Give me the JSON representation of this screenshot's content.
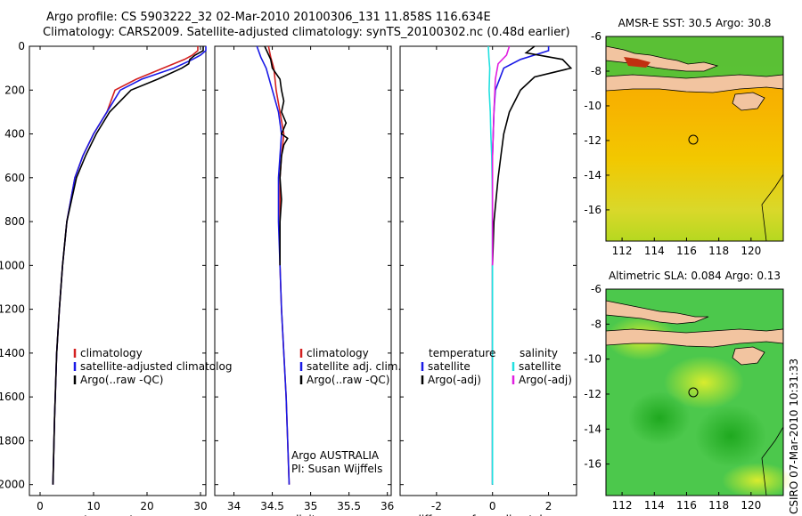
{
  "title": {
    "line1": "Argo profile: CS 5903222_32 02-Mar-2010 20100306_131 11.858S 116.634E",
    "line2": "Climatology: CARS2009. Satellite-adjusted climatology: synTS_20100302.nc (0.48d earlier)"
  },
  "colors": {
    "climatology": "#d42020",
    "satellite": "#1a1ae6",
    "argo": "#000000",
    "sat_salinity": "#22e0e0",
    "argo_salinity": "#e020e0"
  },
  "chart_data": [
    {
      "type": "line",
      "id": "temperature",
      "xlabel": "temperature",
      "ylabel": "",
      "xlim": [
        -2,
        31
      ],
      "ylim": [
        2050,
        0
      ],
      "xticks": [
        0,
        10,
        20,
        30
      ],
      "yticks": [
        0,
        200,
        400,
        600,
        800,
        1000,
        1200,
        1400,
        1600,
        1800,
        2000
      ],
      "series": [
        {
          "name": "climatology",
          "color": "#d42020",
          "x": [
            29.5,
            29.5,
            28.5,
            27,
            23,
            18,
            14,
            12.5,
            10,
            8,
            6.5,
            5,
            4.2,
            3.6,
            3.1,
            2.7,
            2.4
          ],
          "y": [
            0,
            20,
            40,
            60,
            100,
            150,
            200,
            300,
            400,
            500,
            600,
            800,
            1000,
            1200,
            1400,
            1700,
            2000
          ]
        },
        {
          "name": "satellite-adjusted climatology",
          "color": "#1a1ae6",
          "x": [
            31,
            31,
            30,
            28.5,
            25,
            19,
            15,
            12.5,
            10,
            8,
            6.5,
            5,
            4.2,
            3.6,
            3.1,
            2.7,
            2.4
          ],
          "y": [
            0,
            20,
            40,
            60,
            100,
            150,
            200,
            300,
            400,
            500,
            600,
            800,
            1000,
            1200,
            1400,
            1700,
            2000
          ]
        },
        {
          "name": "Argo(..raw -QC)",
          "color": "#000000",
          "x": [
            30.5,
            30.5,
            29,
            28,
            27.8,
            26.5,
            22,
            17,
            13,
            10.5,
            8.5,
            6.8,
            5,
            4.2,
            3.6,
            3.1,
            2.7,
            2.4
          ],
          "y": [
            0,
            20,
            40,
            60,
            80,
            100,
            150,
            200,
            300,
            400,
            500,
            600,
            800,
            1000,
            1200,
            1400,
            1700,
            2000
          ]
        }
      ]
    },
    {
      "type": "line",
      "id": "salinity",
      "xlabel": "salinity",
      "xlim": [
        33.75,
        36.05
      ],
      "ylim": [
        2050,
        0
      ],
      "xticks": [
        34,
        34.5,
        35,
        35.5,
        36
      ],
      "series": [
        {
          "name": "climatology",
          "color": "#d42020",
          "x": [
            34.45,
            34.48,
            34.52,
            34.55,
            34.6,
            34.65,
            34.62,
            34.6,
            34.6,
            34.6,
            34.62,
            34.65,
            34.68,
            34.7,
            34.72
          ],
          "y": [
            0,
            50,
            100,
            200,
            300,
            400,
            500,
            600,
            800,
            1000,
            1200,
            1400,
            1600,
            1800,
            2000
          ]
        },
        {
          "name": "satellite adj. clim.",
          "color": "#1a1ae6",
          "x": [
            34.3,
            34.35,
            34.42,
            34.5,
            34.58,
            34.62,
            34.6,
            34.58,
            34.58,
            34.6,
            34.62,
            34.65,
            34.68,
            34.7,
            34.72
          ],
          "y": [
            0,
            50,
            100,
            200,
            300,
            400,
            500,
            600,
            800,
            1000,
            1200,
            1400,
            1600,
            1800,
            2000
          ]
        },
        {
          "name": "Argo(..raw -QC)",
          "color": "#000000",
          "x": [
            34.4,
            34.48,
            34.5,
            34.6,
            34.62,
            34.65,
            34.62,
            34.68,
            34.62,
            34.7,
            34.65,
            34.62,
            34.6,
            34.62,
            34.6,
            34.6,
            34.6
          ],
          "y": [
            0,
            60,
            100,
            150,
            200,
            250,
            300,
            350,
            400,
            420,
            450,
            500,
            600,
            700,
            800,
            900,
            1000
          ]
        }
      ],
      "annotations": [
        "Argo AUSTRALIA",
        "PI: Susan Wijffels"
      ]
    },
    {
      "type": "line",
      "id": "difference",
      "xlabel": "difference from climatology",
      "xlim": [
        -3.3,
        3
      ],
      "ylim": [
        2050,
        0
      ],
      "xticks": [
        -2,
        0,
        2
      ],
      "series": [
        {
          "name": "temperature satellite",
          "color": "#1a1ae6",
          "x": [
            2,
            2,
            1.5,
            1,
            0.4,
            0.1,
            0.05,
            0,
            0,
            0
          ],
          "y": [
            0,
            20,
            40,
            60,
            100,
            200,
            300,
            500,
            1000,
            2000
          ]
        },
        {
          "name": "temperature Argo(-adj)",
          "color": "#000000",
          "x": [
            1.5,
            1.2,
            2.5,
            2.8,
            1.5,
            1,
            0.6,
            0.4,
            0.3,
            0.2,
            0.05,
            0,
            0
          ],
          "y": [
            0,
            30,
            60,
            100,
            140,
            200,
            300,
            400,
            500,
            600,
            800,
            1000,
            2000
          ]
        },
        {
          "name": "salinity satellite",
          "color": "#22e0e0",
          "x": [
            -0.15,
            -0.13,
            -0.1,
            -0.12,
            -0.08,
            -0.06,
            -0.03,
            0,
            0,
            0
          ],
          "y": [
            0,
            50,
            100,
            200,
            300,
            400,
            500,
            700,
            1000,
            2000
          ]
        },
        {
          "name": "salinity Argo(-adj)",
          "color": "#e020e0",
          "x": [
            0.6,
            0.5,
            0.2,
            0.1,
            0.05,
            0,
            0,
            0
          ],
          "y": [
            0,
            40,
            80,
            150,
            300,
            500,
            800,
            1000
          ]
        }
      ],
      "legend": {
        "col1_title": "temperature",
        "col2_title": "salinity",
        "items": [
          "satellite",
          "Argo(-adj)",
          "satellite",
          "Argo(-adj)"
        ]
      }
    },
    {
      "type": "heatmap",
      "id": "sst_map",
      "title": "AMSR-E SST: 30.5 Argo: 30.8",
      "xlim": [
        111,
        122
      ],
      "ylim": [
        -17.8,
        -6
      ],
      "xticks": [
        112,
        114,
        116,
        118,
        120
      ],
      "yticks": [
        -6,
        -8,
        -10,
        -12,
        -14,
        -16
      ],
      "marker": [
        116.634,
        -11.858
      ]
    },
    {
      "type": "heatmap",
      "id": "sla_map",
      "title": "Altimetric SLA: 0.084 Argo: 0.13",
      "xlim": [
        111,
        122
      ],
      "ylim": [
        -17.8,
        -6
      ],
      "xticks": [
        112,
        114,
        116,
        118,
        120
      ],
      "yticks": [
        -6,
        -8,
        -10,
        -12,
        -14,
        -16
      ],
      "marker": [
        116.634,
        -11.858
      ]
    }
  ],
  "legend_temp": [
    "climatology",
    "satellite-adjusted climatolog",
    "Argo(..raw -QC)"
  ],
  "legend_sal": [
    "climatology",
    "satellite adj. clim.",
    "Argo(..raw -QC)"
  ],
  "timestamp": "CSIRO 07-Mar-2010 10:31:33"
}
